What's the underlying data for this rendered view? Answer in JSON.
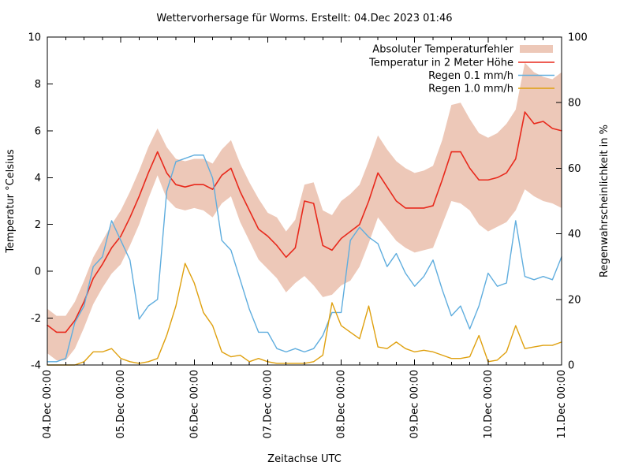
{
  "title": "Wettervorhersage für Worms. Erstellt: 04.Dec 2023 01:46",
  "colors": {
    "background": "#ffffff",
    "axis": "#000000",
    "error_band": "#edc8b8",
    "temperature": "#e8291c",
    "rain_01": "#5fadde",
    "rain_10": "#dfa00e"
  },
  "chart_data": {
    "type": "line",
    "title": "Wettervorhersage für Worms. Erstellt: 04.Dec 2023 01:46",
    "xlabel": "Zeitachse UTC",
    "ylabel_left": "Temperatur °Celsius",
    "ylabel_right": "Regenwahrscheinlichkeit in %",
    "grid": false,
    "legend_position": "top-right",
    "x_unit": "hours since 04.Dec 00:00 UTC (3 h sampling)",
    "x_range_hours": [
      0,
      168
    ],
    "x_hours": [
      0,
      3,
      6,
      9,
      12,
      15,
      18,
      21,
      24,
      27,
      30,
      33,
      36,
      39,
      42,
      45,
      48,
      51,
      54,
      57,
      60,
      63,
      66,
      69,
      72,
      75,
      78,
      81,
      84,
      87,
      90,
      93,
      96,
      99,
      102,
      105,
      108,
      111,
      114,
      117,
      120,
      123,
      126,
      129,
      132,
      135,
      138,
      141,
      144,
      147,
      150,
      153,
      156,
      159,
      162,
      165,
      168
    ],
    "x_tick_labels": [
      "04.Dec 00:00",
      "05.Dec 00:00",
      "06.Dec 00:00",
      "07.Dec 00:00",
      "08.Dec 00:00",
      "09.Dec 00:00",
      "10.Dec 00:00",
      "11.Dec 00:00"
    ],
    "x_minor_tick_hours": 6,
    "y_left": {
      "min": -4,
      "max": 10,
      "ticks": [
        10,
        8,
        6,
        4,
        2,
        0,
        -2,
        -4
      ]
    },
    "y_right": {
      "min": 0,
      "max": 100,
      "ticks": [
        100,
        80,
        60,
        40,
        20,
        0
      ]
    },
    "series": [
      {
        "name": "Absoluter Temperaturfehler",
        "type": "band",
        "axis": "left",
        "color": "#edc8b8",
        "lower": [
          -3.5,
          -3.8,
          -3.8,
          -3.3,
          -2.4,
          -1.4,
          -0.7,
          -0.1,
          0.3,
          1.1,
          2.0,
          3.1,
          4.1,
          3.1,
          2.7,
          2.6,
          2.7,
          2.6,
          2.3,
          2.9,
          3.2,
          2.1,
          1.3,
          0.5,
          0.1,
          -0.3,
          -0.9,
          -0.5,
          -0.2,
          -0.6,
          -1.1,
          -1.0,
          -0.6,
          -0.4,
          0.2,
          1.2,
          2.3,
          1.8,
          1.3,
          1.0,
          0.8,
          0.9,
          1.0,
          2.0,
          3.0,
          2.9,
          2.6,
          2.0,
          1.7,
          1.9,
          2.1,
          2.6,
          3.5,
          3.2,
          3.0,
          2.9,
          2.7
        ],
        "upper": [
          -1.6,
          -1.9,
          -1.9,
          -1.3,
          -0.4,
          0.6,
          1.3,
          2.0,
          2.6,
          3.4,
          4.3,
          5.3,
          6.1,
          5.3,
          4.8,
          4.7,
          4.8,
          4.8,
          4.6,
          5.2,
          5.6,
          4.6,
          3.8,
          3.1,
          2.5,
          2.3,
          1.7,
          2.2,
          3.7,
          3.8,
          2.6,
          2.4,
          3.0,
          3.3,
          3.7,
          4.7,
          5.8,
          5.2,
          4.7,
          4.4,
          4.2,
          4.3,
          4.5,
          5.6,
          7.1,
          7.2,
          6.5,
          5.9,
          5.7,
          5.9,
          6.3,
          6.9,
          8.9,
          8.5,
          8.3,
          8.2,
          8.5
        ]
      },
      {
        "name": "Temperatur in 2 Meter Höhe",
        "type": "line",
        "axis": "left",
        "color": "#e8291c",
        "values": [
          -2.3,
          -2.6,
          -2.6,
          -2.1,
          -1.3,
          -0.3,
          0.3,
          1.0,
          1.5,
          2.3,
          3.2,
          4.2,
          5.1,
          4.2,
          3.7,
          3.6,
          3.7,
          3.7,
          3.5,
          4.1,
          4.4,
          3.4,
          2.6,
          1.8,
          1.5,
          1.1,
          0.6,
          1.0,
          3.0,
          2.9,
          1.1,
          0.9,
          1.4,
          1.7,
          2.0,
          3.0,
          4.2,
          3.6,
          3.0,
          2.7,
          2.7,
          2.7,
          2.8,
          3.9,
          5.1,
          5.1,
          4.4,
          3.9,
          3.9,
          4.0,
          4.2,
          4.8,
          6.8,
          6.3,
          6.4,
          6.1,
          6.0
        ]
      },
      {
        "name": "Regen 0.1 mm/h",
        "type": "line",
        "axis": "right",
        "color": "#5fadde",
        "values": [
          1,
          1,
          2,
          13,
          18,
          30,
          33,
          44,
          38,
          32,
          14,
          18,
          20,
          53,
          62,
          63,
          64,
          64,
          57,
          38,
          35,
          26,
          17,
          10,
          10,
          5,
          4,
          5,
          4,
          5,
          9,
          16,
          16,
          38,
          42,
          39,
          37,
          30,
          34,
          28,
          24,
          27,
          32,
          23,
          15,
          18,
          11,
          18,
          28,
          24,
          25,
          44,
          27,
          26,
          27,
          26,
          33
        ]
      },
      {
        "name": "Regen 1.0 mm/h",
        "type": "line",
        "axis": "right",
        "color": "#dfa00e",
        "values": [
          0,
          0,
          0,
          0,
          1,
          4,
          4,
          5,
          2,
          1,
          0.5,
          1,
          2,
          9,
          18,
          31,
          25,
          16,
          12,
          4,
          2.5,
          3,
          1,
          2,
          1,
          0.5,
          0.5,
          0.5,
          0.5,
          1,
          3,
          19,
          12,
          10,
          8,
          18,
          5.5,
          5,
          7,
          5,
          4,
          4.5,
          4,
          3,
          2,
          2,
          2.5,
          9,
          1,
          1.5,
          4,
          12,
          5,
          5.5,
          6,
          6,
          7
        ]
      }
    ]
  }
}
